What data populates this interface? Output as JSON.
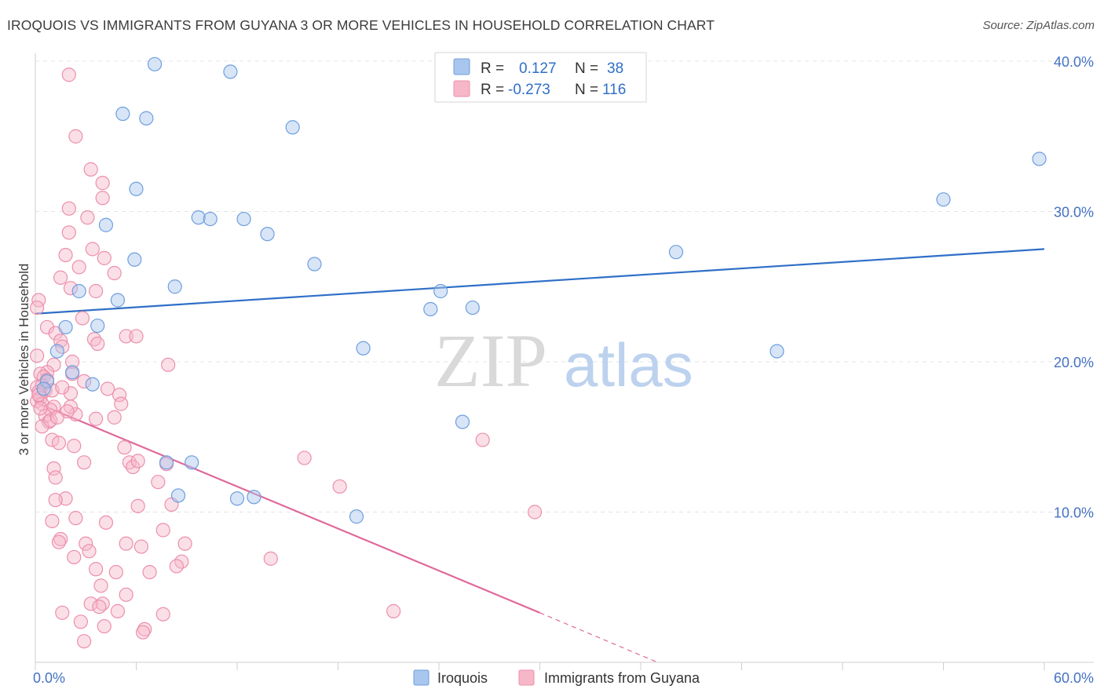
{
  "header": {
    "title": "IROQUOIS VS IMMIGRANTS FROM GUYANA 3 OR MORE VEHICLES IN HOUSEHOLD CORRELATION CHART",
    "source": "Source: ZipAtlas.com"
  },
  "watermark": {
    "zip": "ZIP",
    "atlas": "atlas"
  },
  "colors": {
    "iroquois_fill": "#a9c6ee",
    "iroquois_stroke": "#6e9fde",
    "iroquois_line": "#2f6fc7",
    "guyana_fill": "#f6b7c9",
    "guyana_stroke": "#ec8fac",
    "guyana_line": "#e0699a",
    "tick_text": "#4472c4"
  },
  "legend": {
    "rows": [
      {
        "r_label": "R =",
        "r_value": "0.127",
        "n_label": "N =",
        "n_value": "38"
      },
      {
        "r_label": "R =",
        "r_value": "-0.273",
        "n_label": "N =",
        "n_value": "116"
      }
    ]
  },
  "chart_data": {
    "type": "scatter",
    "ylabel": "3 or more Vehicles in Household",
    "xlim": [
      0,
      60
    ],
    "ylim": [
      0,
      40
    ],
    "x_tick_labels": [
      "0.0%",
      "60.0%"
    ],
    "y_ticks": [
      10,
      20,
      30,
      40
    ],
    "y_tick_labels": [
      "10.0%",
      "20.0%",
      "30.0%",
      "40.0%"
    ],
    "grid": true,
    "series": [
      {
        "name": "Iroquois",
        "points": [
          [
            7.1,
            39.8
          ],
          [
            11.6,
            39.3
          ],
          [
            5.2,
            36.5
          ],
          [
            6.6,
            36.2
          ],
          [
            15.3,
            35.6
          ],
          [
            59.7,
            33.5
          ],
          [
            6.0,
            31.5
          ],
          [
            54.0,
            30.8
          ],
          [
            9.7,
            29.6
          ],
          [
            10.4,
            29.5
          ],
          [
            12.4,
            29.5
          ],
          [
            4.2,
            29.1
          ],
          [
            13.8,
            28.5
          ],
          [
            38.1,
            27.3
          ],
          [
            5.9,
            26.8
          ],
          [
            16.6,
            26.5
          ],
          [
            8.3,
            25.0
          ],
          [
            2.6,
            24.7
          ],
          [
            24.1,
            24.7
          ],
          [
            4.9,
            24.1
          ],
          [
            23.5,
            23.5
          ],
          [
            26.0,
            23.6
          ],
          [
            1.8,
            22.3
          ],
          [
            3.7,
            22.4
          ],
          [
            19.5,
            20.9
          ],
          [
            44.1,
            20.7
          ],
          [
            1.3,
            20.7
          ],
          [
            2.2,
            19.3
          ],
          [
            0.7,
            18.7
          ],
          [
            3.4,
            18.5
          ],
          [
            0.5,
            18.2
          ],
          [
            25.4,
            16.0
          ],
          [
            7.8,
            13.3
          ],
          [
            9.3,
            13.3
          ],
          [
            8.5,
            11.1
          ],
          [
            12.0,
            10.9
          ],
          [
            13.0,
            11.0
          ],
          [
            19.1,
            9.7
          ]
        ]
      },
      {
        "name": "Immigrants from Guyana",
        "points": [
          [
            2.0,
            39.1
          ],
          [
            2.4,
            35.0
          ],
          [
            3.3,
            32.8
          ],
          [
            4.0,
            31.9
          ],
          [
            2.0,
            30.2
          ],
          [
            4.0,
            30.9
          ],
          [
            3.1,
            29.6
          ],
          [
            2.0,
            28.6
          ],
          [
            3.4,
            27.5
          ],
          [
            1.8,
            27.1
          ],
          [
            4.1,
            26.9
          ],
          [
            2.6,
            26.3
          ],
          [
            1.5,
            25.6
          ],
          [
            4.7,
            25.9
          ],
          [
            2.1,
            24.9
          ],
          [
            3.6,
            24.7
          ],
          [
            0.2,
            24.1
          ],
          [
            0.1,
            23.6
          ],
          [
            2.8,
            22.9
          ],
          [
            0.7,
            22.3
          ],
          [
            1.2,
            21.9
          ],
          [
            3.5,
            21.5
          ],
          [
            5.4,
            21.7
          ],
          [
            6.0,
            21.7
          ],
          [
            1.5,
            21.4
          ],
          [
            3.7,
            21.2
          ],
          [
            1.6,
            21.0
          ],
          [
            0.1,
            20.4
          ],
          [
            2.2,
            20.0
          ],
          [
            7.9,
            19.8
          ],
          [
            1.1,
            19.8
          ],
          [
            0.7,
            19.3
          ],
          [
            2.2,
            19.2
          ],
          [
            0.3,
            19.2
          ],
          [
            0.5,
            19.0
          ],
          [
            0.7,
            18.8
          ],
          [
            0.1,
            18.3
          ],
          [
            0.4,
            18.4
          ],
          [
            0.6,
            18.1
          ],
          [
            1.0,
            18.1
          ],
          [
            0.2,
            18.0
          ],
          [
            2.1,
            17.9
          ],
          [
            0.3,
            17.6
          ],
          [
            4.3,
            18.2
          ],
          [
            5.0,
            17.8
          ],
          [
            0.1,
            17.4
          ],
          [
            0.4,
            17.2
          ],
          [
            1.1,
            17.0
          ],
          [
            0.9,
            16.8
          ],
          [
            5.1,
            17.2
          ],
          [
            2.4,
            16.5
          ],
          [
            0.6,
            16.4
          ],
          [
            0.8,
            16.0
          ],
          [
            3.6,
            16.2
          ],
          [
            4.7,
            16.3
          ],
          [
            0.4,
            15.7
          ],
          [
            1.0,
            14.8
          ],
          [
            1.4,
            14.6
          ],
          [
            2.3,
            14.4
          ],
          [
            5.3,
            14.3
          ],
          [
            26.6,
            14.8
          ],
          [
            16.0,
            13.6
          ],
          [
            2.9,
            13.3
          ],
          [
            5.6,
            13.3
          ],
          [
            5.8,
            13.0
          ],
          [
            7.8,
            13.2
          ],
          [
            6.1,
            13.4
          ],
          [
            1.1,
            12.9
          ],
          [
            1.2,
            12.3
          ],
          [
            7.3,
            12.0
          ],
          [
            18.1,
            11.7
          ],
          [
            1.8,
            10.9
          ],
          [
            1.2,
            10.8
          ],
          [
            6.1,
            10.4
          ],
          [
            8.1,
            10.5
          ],
          [
            29.7,
            10.0
          ],
          [
            2.4,
            9.6
          ],
          [
            1.0,
            9.4
          ],
          [
            4.2,
            9.3
          ],
          [
            7.6,
            8.8
          ],
          [
            1.5,
            8.2
          ],
          [
            1.4,
            8.0
          ],
          [
            3.0,
            7.9
          ],
          [
            5.4,
            7.9
          ],
          [
            6.3,
            7.7
          ],
          [
            8.9,
            7.9
          ],
          [
            3.2,
            7.4
          ],
          [
            2.3,
            7.0
          ],
          [
            14.0,
            6.9
          ],
          [
            8.7,
            6.7
          ],
          [
            3.6,
            6.2
          ],
          [
            4.8,
            6.0
          ],
          [
            6.8,
            6.0
          ],
          [
            8.4,
            6.4
          ],
          [
            3.9,
            5.1
          ],
          [
            5.4,
            4.5
          ],
          [
            4.0,
            3.9
          ],
          [
            3.3,
            3.9
          ],
          [
            3.8,
            3.7
          ],
          [
            1.6,
            3.3
          ],
          [
            4.9,
            3.4
          ],
          [
            21.3,
            3.4
          ],
          [
            7.6,
            3.2
          ],
          [
            2.7,
            2.7
          ],
          [
            4.1,
            2.4
          ],
          [
            6.5,
            2.2
          ],
          [
            6.4,
            2.0
          ],
          [
            2.9,
            1.4
          ],
          [
            0.3,
            16.9
          ],
          [
            0.9,
            16.1
          ],
          [
            2.1,
            17.0
          ],
          [
            1.6,
            18.3
          ],
          [
            0.2,
            17.8
          ],
          [
            1.9,
            16.7
          ],
          [
            2.9,
            18.7
          ],
          [
            1.3,
            16.3
          ]
        ]
      }
    ],
    "trend_lines": [
      {
        "series": "Iroquois",
        "x": [
          0,
          60
        ],
        "y": [
          23.2,
          27.5
        ],
        "dashed": false
      },
      {
        "series": "Immigrants from Guyana",
        "x": [
          0,
          30
        ],
        "y": [
          17.3,
          3.3
        ],
        "dashed": false
      },
      {
        "series": "Immigrants from Guyana",
        "x": [
          30,
          37
        ],
        "y": [
          3.3,
          0
        ],
        "dashed": true
      }
    ],
    "legend_position": "top-center",
    "bottom_legend": [
      "Iroquois",
      "Immigrants from Guyana"
    ]
  }
}
